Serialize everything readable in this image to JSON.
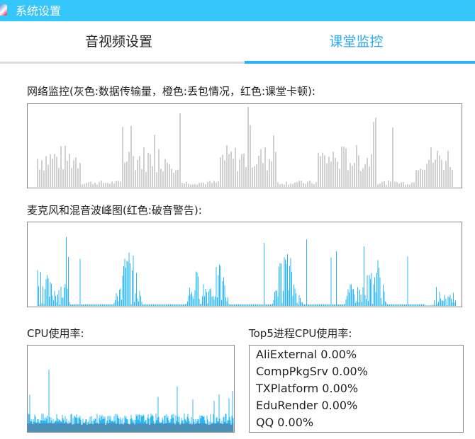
{
  "window": {
    "title": "系统设置",
    "icon": "app-logo-icon",
    "accent": "#35c6fb"
  },
  "tabs": [
    {
      "label": "音视频设置",
      "active": false
    },
    {
      "label": "课堂监控",
      "active": true
    }
  ],
  "network": {
    "label": "网络监控(灰色:数据传输量，橙色:丢包情况，红色:课堂卡顿):",
    "color": "#a0a0a0"
  },
  "mic": {
    "label": "麦克风和混音波峰图(红色:破音警告):",
    "color": "#2ab8f5"
  },
  "cpu": {
    "label": "CPU使用率:",
    "color": "#2ab8f5",
    "base_color": "#4a90b8"
  },
  "top5": {
    "label": "Top5进程CPU使用率:",
    "processes": [
      {
        "text": "AliExternal 0.00%"
      },
      {
        "text": "CompPkgSrv 0.00%"
      },
      {
        "text": "TXPlatform 0.00%"
      },
      {
        "text": "EduRender 0.00%"
      },
      {
        "text": "QQ 0.00%"
      }
    ]
  }
}
